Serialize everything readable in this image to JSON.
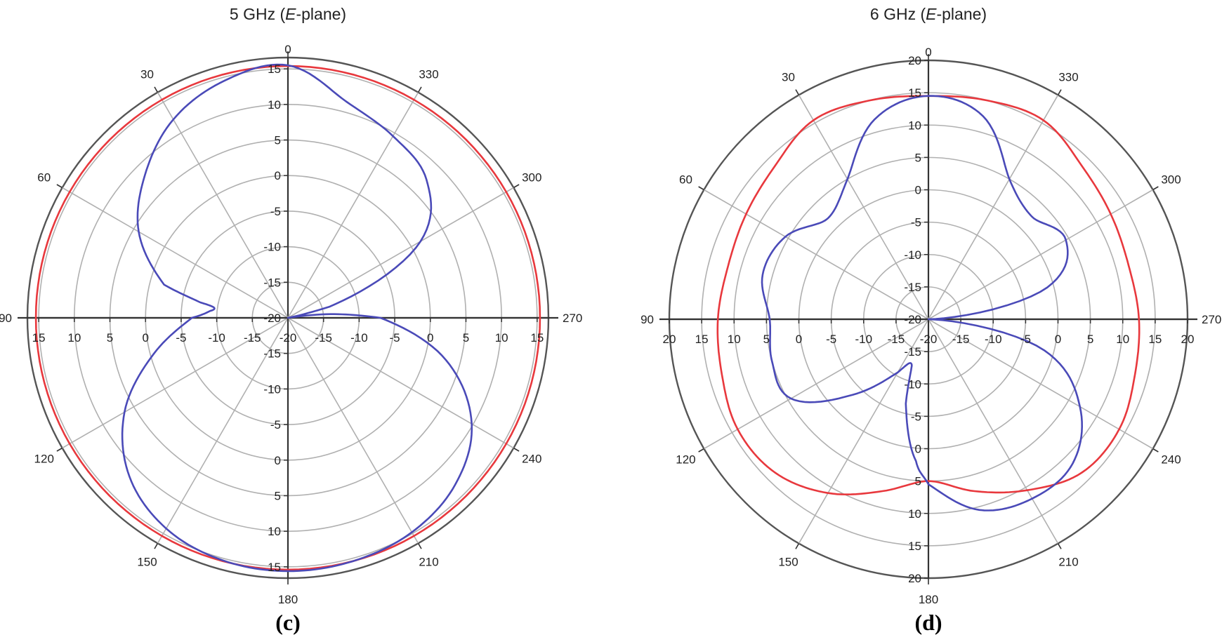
{
  "chart_data": [
    {
      "type": "polar",
      "title": "5 GHz (E-plane)",
      "title_parts": [
        "5 GHz (",
        "E",
        "-plane)"
      ],
      "caption": "(c)",
      "angle_direction": "counterclockwise",
      "angle_ticks": [
        "0",
        "30",
        "60",
        "90",
        "120",
        "150",
        "180",
        "210",
        "240",
        "270",
        "300",
        "330"
      ],
      "rlim": [
        -20,
        16
      ],
      "rings": [
        -20,
        -15,
        -10,
        -5,
        0,
        5,
        10,
        15
      ],
      "vertical_tick_labels": [
        "15",
        "10",
        "5",
        "0",
        "-5",
        "-10",
        "-15",
        "-20",
        "-15",
        "-10",
        "-5",
        "0",
        "5",
        "10",
        "15"
      ],
      "horizontal_tick_labels": [
        "15",
        "10",
        "5",
        "0",
        "-5",
        "-10",
        "-15",
        "-20",
        "-15",
        "-10",
        "-5",
        "0",
        "5",
        "10",
        "15"
      ],
      "grid": true,
      "series": [
        {
          "color": "#e8383d",
          "theta": [
            0,
            30,
            60,
            90,
            120,
            150,
            180,
            210,
            240,
            270,
            300,
            330,
            360
          ],
          "r": [
            15.4,
            15.4,
            15.4,
            15.4,
            15.4,
            15.4,
            15.4,
            15.4,
            15.4,
            15.4,
            15.4,
            15.4,
            15.4
          ]
        },
        {
          "color": "#4a4ab8",
          "theta": [
            0,
            15,
            30,
            45,
            60,
            75,
            80,
            82,
            85,
            90,
            105,
            120,
            135,
            150,
            165,
            180,
            195,
            210,
            225,
            240,
            255,
            270,
            275,
            280,
            285,
            300,
            315,
            330,
            345,
            360
          ],
          "r": [
            15.5,
            14.5,
            12.2,
            8.4,
            4.2,
            -2.0,
            -7.5,
            -9.5,
            -9.0,
            -6.5,
            -0.5,
            6.5,
            11.5,
            14.2,
            15.3,
            15.6,
            15.4,
            14.8,
            13.2,
            9.8,
            3.0,
            -7.0,
            -14.0,
            -20.0,
            -14.0,
            1.5,
            7.5,
            9.5,
            11.5,
            15.5
          ]
        }
      ]
    },
    {
      "type": "polar",
      "title": "6 GHz (E-plane)",
      "title_parts": [
        "6 GHz (",
        "E",
        "-plane)"
      ],
      "caption": "(d)",
      "angle_direction": "counterclockwise",
      "angle_ticks": [
        "0",
        "30",
        "60",
        "90",
        "120",
        "150",
        "180",
        "210",
        "240",
        "270",
        "300",
        "330"
      ],
      "rlim": [
        -20,
        20
      ],
      "rings": [
        -20,
        -15,
        -10,
        -5,
        0,
        5,
        10,
        15,
        20
      ],
      "vertical_tick_labels": [
        "20",
        "15",
        "10",
        "5",
        "0",
        "-5",
        "-10",
        "-15",
        "-20",
        "-15",
        "-10",
        "-5",
        "0",
        "5",
        "10",
        "15",
        "20"
      ],
      "horizontal_tick_labels": [
        "20",
        "15",
        "10",
        "5",
        "0",
        "-5",
        "-10",
        "-15",
        "-20",
        "-15",
        "-10",
        "-5",
        "0",
        "5",
        "10",
        "15",
        "20"
      ],
      "grid": true,
      "series": [
        {
          "color": "#e8383d",
          "theta": [
            0,
            15,
            30,
            45,
            60,
            75,
            90,
            105,
            120,
            135,
            150,
            165,
            180,
            195,
            210,
            225,
            240,
            255,
            270,
            285,
            300,
            315,
            330,
            345,
            360
          ],
          "r": [
            14.5,
            15.0,
            15.5,
            13.5,
            12.5,
            12.0,
            12.5,
            13.0,
            14.0,
            13.5,
            11.0,
            7.5,
            5.0,
            7.5,
            10.5,
            13.5,
            14.0,
            13.0,
            12.5,
            12.0,
            12.5,
            13.5,
            15.5,
            15.0,
            14.5
          ]
        },
        {
          "color": "#4a4ab8",
          "theta": [
            0,
            15,
            30,
            45,
            60,
            75,
            90,
            105,
            120,
            135,
            150,
            160,
            165,
            175,
            180,
            195,
            210,
            225,
            240,
            255,
            270,
            285,
            300,
            315,
            330,
            345,
            360
          ],
          "r": [
            14.5,
            12.0,
            5.0,
            2.0,
            5.5,
            6.5,
            4.5,
            5.0,
            4.5,
            -3.5,
            -10.5,
            -12.5,
            -6.5,
            2.0,
            5.5,
            10.5,
            12.0,
            11.5,
            7.0,
            -1.5,
            -20.0,
            -1.0,
            4.5,
            2.5,
            5.0,
            12.5,
            14.5
          ]
        }
      ]
    }
  ]
}
